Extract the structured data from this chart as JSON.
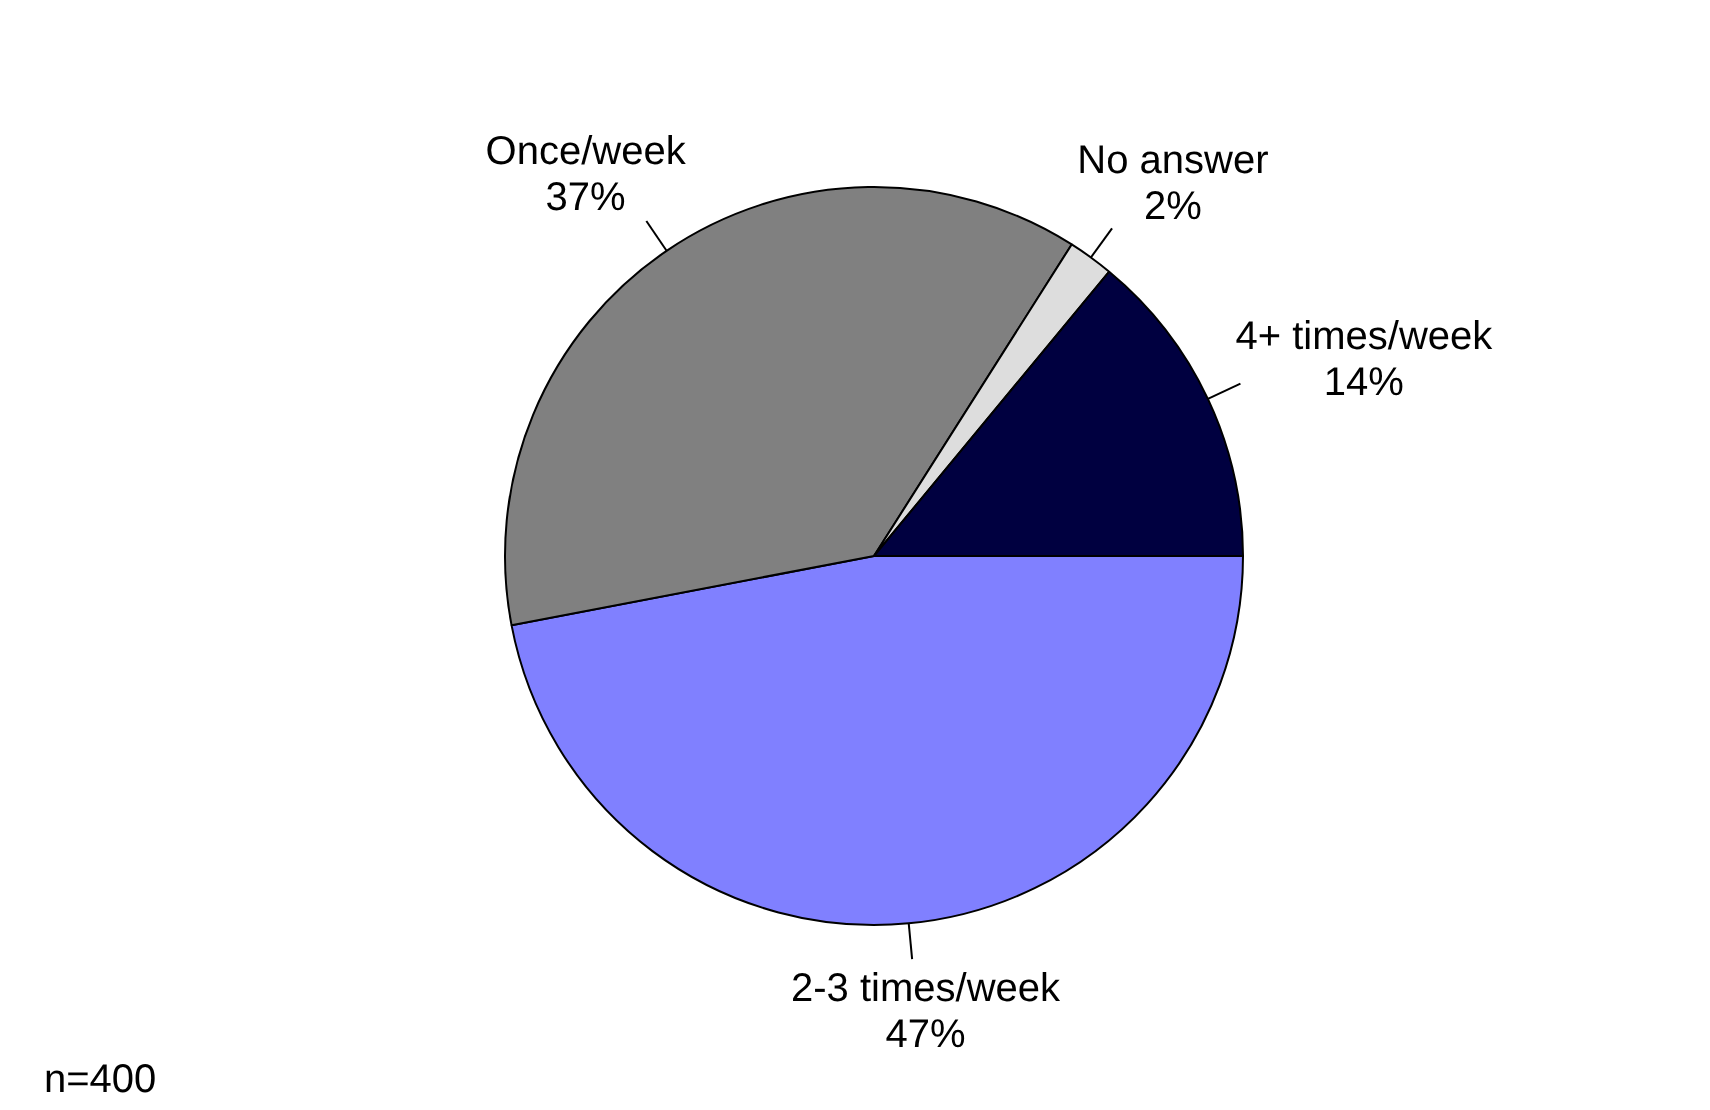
{
  "chart_data": {
    "type": "pie",
    "categories": [
      "2-3 times/week",
      "Once/week",
      "No answer",
      "4+ times/week"
    ],
    "values": [
      47,
      37,
      2,
      14
    ],
    "colors": [
      "#8080ff",
      "#808080",
      "#dddddd",
      "#000040"
    ],
    "value_labels": [
      "47%",
      "37%",
      "2%",
      "14%"
    ],
    "annotations": [
      "n=400"
    ]
  }
}
